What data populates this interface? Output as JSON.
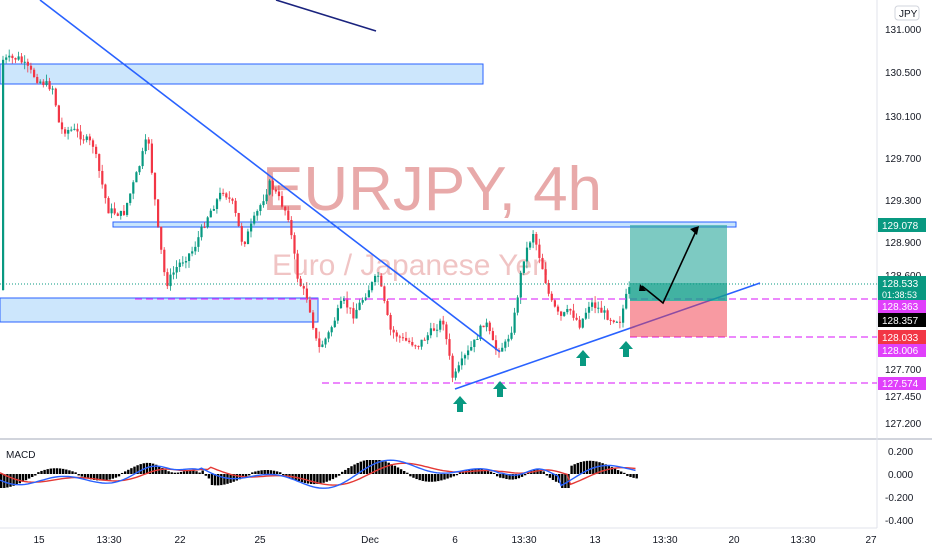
{
  "chart_data": {
    "type": "candlestick",
    "watermark": {
      "symbol": "EURJPY, 4h",
      "description": "Euro / Japanese Yen"
    },
    "currency_badge": "JPY",
    "x_ticks": [
      "15",
      "13:30",
      "22",
      "25",
      "Dec",
      "6",
      "13:30",
      "13",
      "13:30",
      "20",
      "13:30",
      "27"
    ],
    "y_ticks": [
      "131.000",
      "130.500",
      "130.100",
      "129.700",
      "129.300",
      "128.900",
      "128.600",
      "127.700",
      "127.450",
      "127.200"
    ],
    "ylim": [
      127.1,
      131.2
    ],
    "macd": {
      "label": "MACD",
      "y_ticks": [
        "0.200",
        "0.000",
        "-0.200",
        "-0.400"
      ],
      "ylim": [
        -0.42,
        0.26
      ]
    },
    "price_labels": [
      {
        "text": "129.078",
        "value": 129.078,
        "bg": "#089981",
        "fg": "#ffffff"
      },
      {
        "text": "128.533",
        "value": 128.533,
        "bg": "#089981",
        "fg": "#ffffff"
      },
      {
        "text": "01:38:53",
        "value": 128.46,
        "bg": "#089981",
        "fg": "#ffffff"
      },
      {
        "text": "128.363",
        "value": 128.363,
        "bg": "#e040fb",
        "fg": "#ffffff"
      },
      {
        "text": "128.357",
        "value": 128.357,
        "bg": "#000000",
        "fg": "#ffffff"
      },
      {
        "text": "128.033",
        "value": 128.033,
        "bg": "#f23645",
        "fg": "#ffffff"
      },
      {
        "text": "128.006",
        "value": 128.006,
        "bg": "#e040fb",
        "fg": "#ffffff"
      },
      {
        "text": "127.574",
        "value": 127.574,
        "bg": "#e040fb",
        "fg": "#ffffff"
      }
    ],
    "colors": {
      "up": "#089981",
      "down": "#f23645",
      "trend": "#2962ff",
      "level": "#e040fb",
      "zone": "#bbdefb"
    }
  }
}
